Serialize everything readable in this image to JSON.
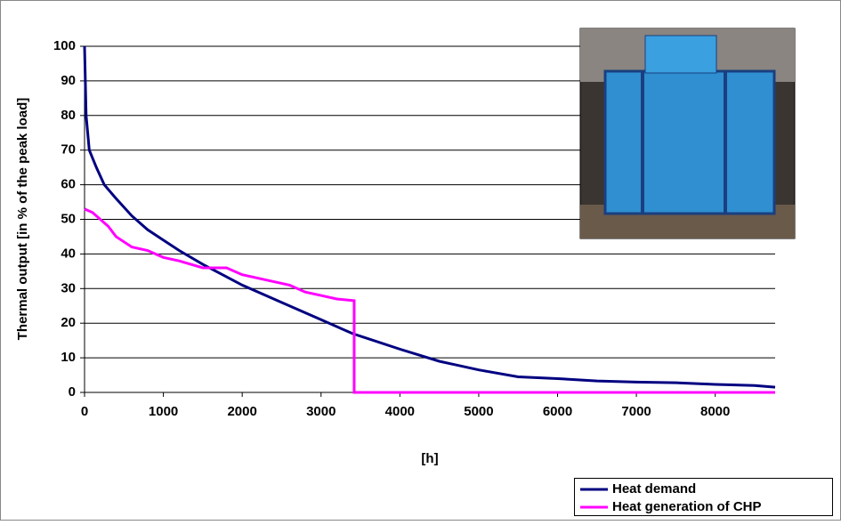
{
  "chart_data": {
    "type": "line",
    "y_label": "Thermal output [in % of the peak load]",
    "x_label": "[h]",
    "xlim": [
      0,
      8760
    ],
    "xticks": [
      0,
      1000,
      2000,
      3000,
      4000,
      5000,
      6000,
      7000,
      8000
    ],
    "ylim": [
      0,
      100
    ],
    "yticks": [
      0,
      10,
      20,
      30,
      40,
      50,
      60,
      70,
      80,
      90,
      100
    ],
    "grid": true,
    "legend": "bottom-right",
    "series": [
      {
        "name": "Heat demand",
        "color": "#000080",
        "x": [
          0,
          20,
          60,
          150,
          250,
          400,
          600,
          800,
          1000,
          1200,
          1500,
          2000,
          2500,
          3000,
          3400,
          4000,
          4500,
          5000,
          5500,
          6000,
          6500,
          7000,
          7500,
          8000,
          8500,
          8760
        ],
        "values": [
          100,
          80,
          70,
          65,
          60,
          56,
          51,
          47,
          44,
          41,
          37,
          31,
          26,
          21,
          17,
          12.5,
          9,
          6.5,
          4.5,
          4,
          3.3,
          3,
          2.8,
          2.3,
          2,
          1.5
        ]
      },
      {
        "name": "Heat generation of CHP",
        "color": "#ff00ff",
        "x": [
          0,
          100,
          200,
          300,
          400,
          600,
          800,
          1000,
          1200,
          1500,
          1800,
          2000,
          2300,
          2600,
          2800,
          3000,
          3200,
          3420,
          3420,
          8760
        ],
        "values": [
          53,
          52,
          50,
          48,
          45,
          42,
          41,
          39,
          38,
          36,
          36,
          34,
          32.5,
          31,
          29,
          28,
          27,
          26.5,
          0,
          0
        ]
      }
    ]
  }
}
